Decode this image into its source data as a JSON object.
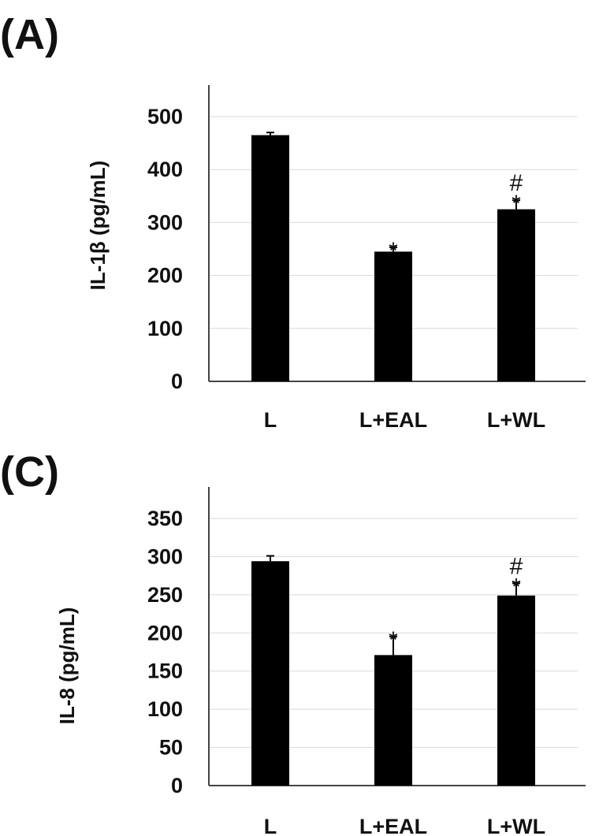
{
  "chart_data": [
    {
      "panel_label": "(A)",
      "type": "bar",
      "categories": [
        "L",
        "L+EAL",
        "L+WL"
      ],
      "values": [
        465,
        245,
        325
      ],
      "errors": [
        5,
        8,
        17
      ],
      "annotations": [
        [],
        [
          "*"
        ],
        [
          "*",
          "#"
        ]
      ],
      "ylabel": "IL-1β (pg/mL)",
      "ylim": [
        0,
        500
      ],
      "yticks": [
        0,
        100,
        200,
        300,
        400,
        500
      ],
      "grid": true,
      "bar_color": "#000000"
    },
    {
      "panel_label": "(C)",
      "type": "bar",
      "categories": [
        "L",
        "L+EAL",
        "L+WL"
      ],
      "values": [
        294,
        171,
        249
      ],
      "errors": [
        7,
        24,
        16
      ],
      "annotations": [
        [],
        [
          "*"
        ],
        [
          "*",
          "#"
        ]
      ],
      "ylabel": "IL-8 (pg/mL)",
      "ylim": [
        0,
        350
      ],
      "yticks": [
        0,
        50,
        100,
        150,
        200,
        250,
        300,
        350
      ],
      "grid": true,
      "bar_color": "#000000"
    }
  ]
}
